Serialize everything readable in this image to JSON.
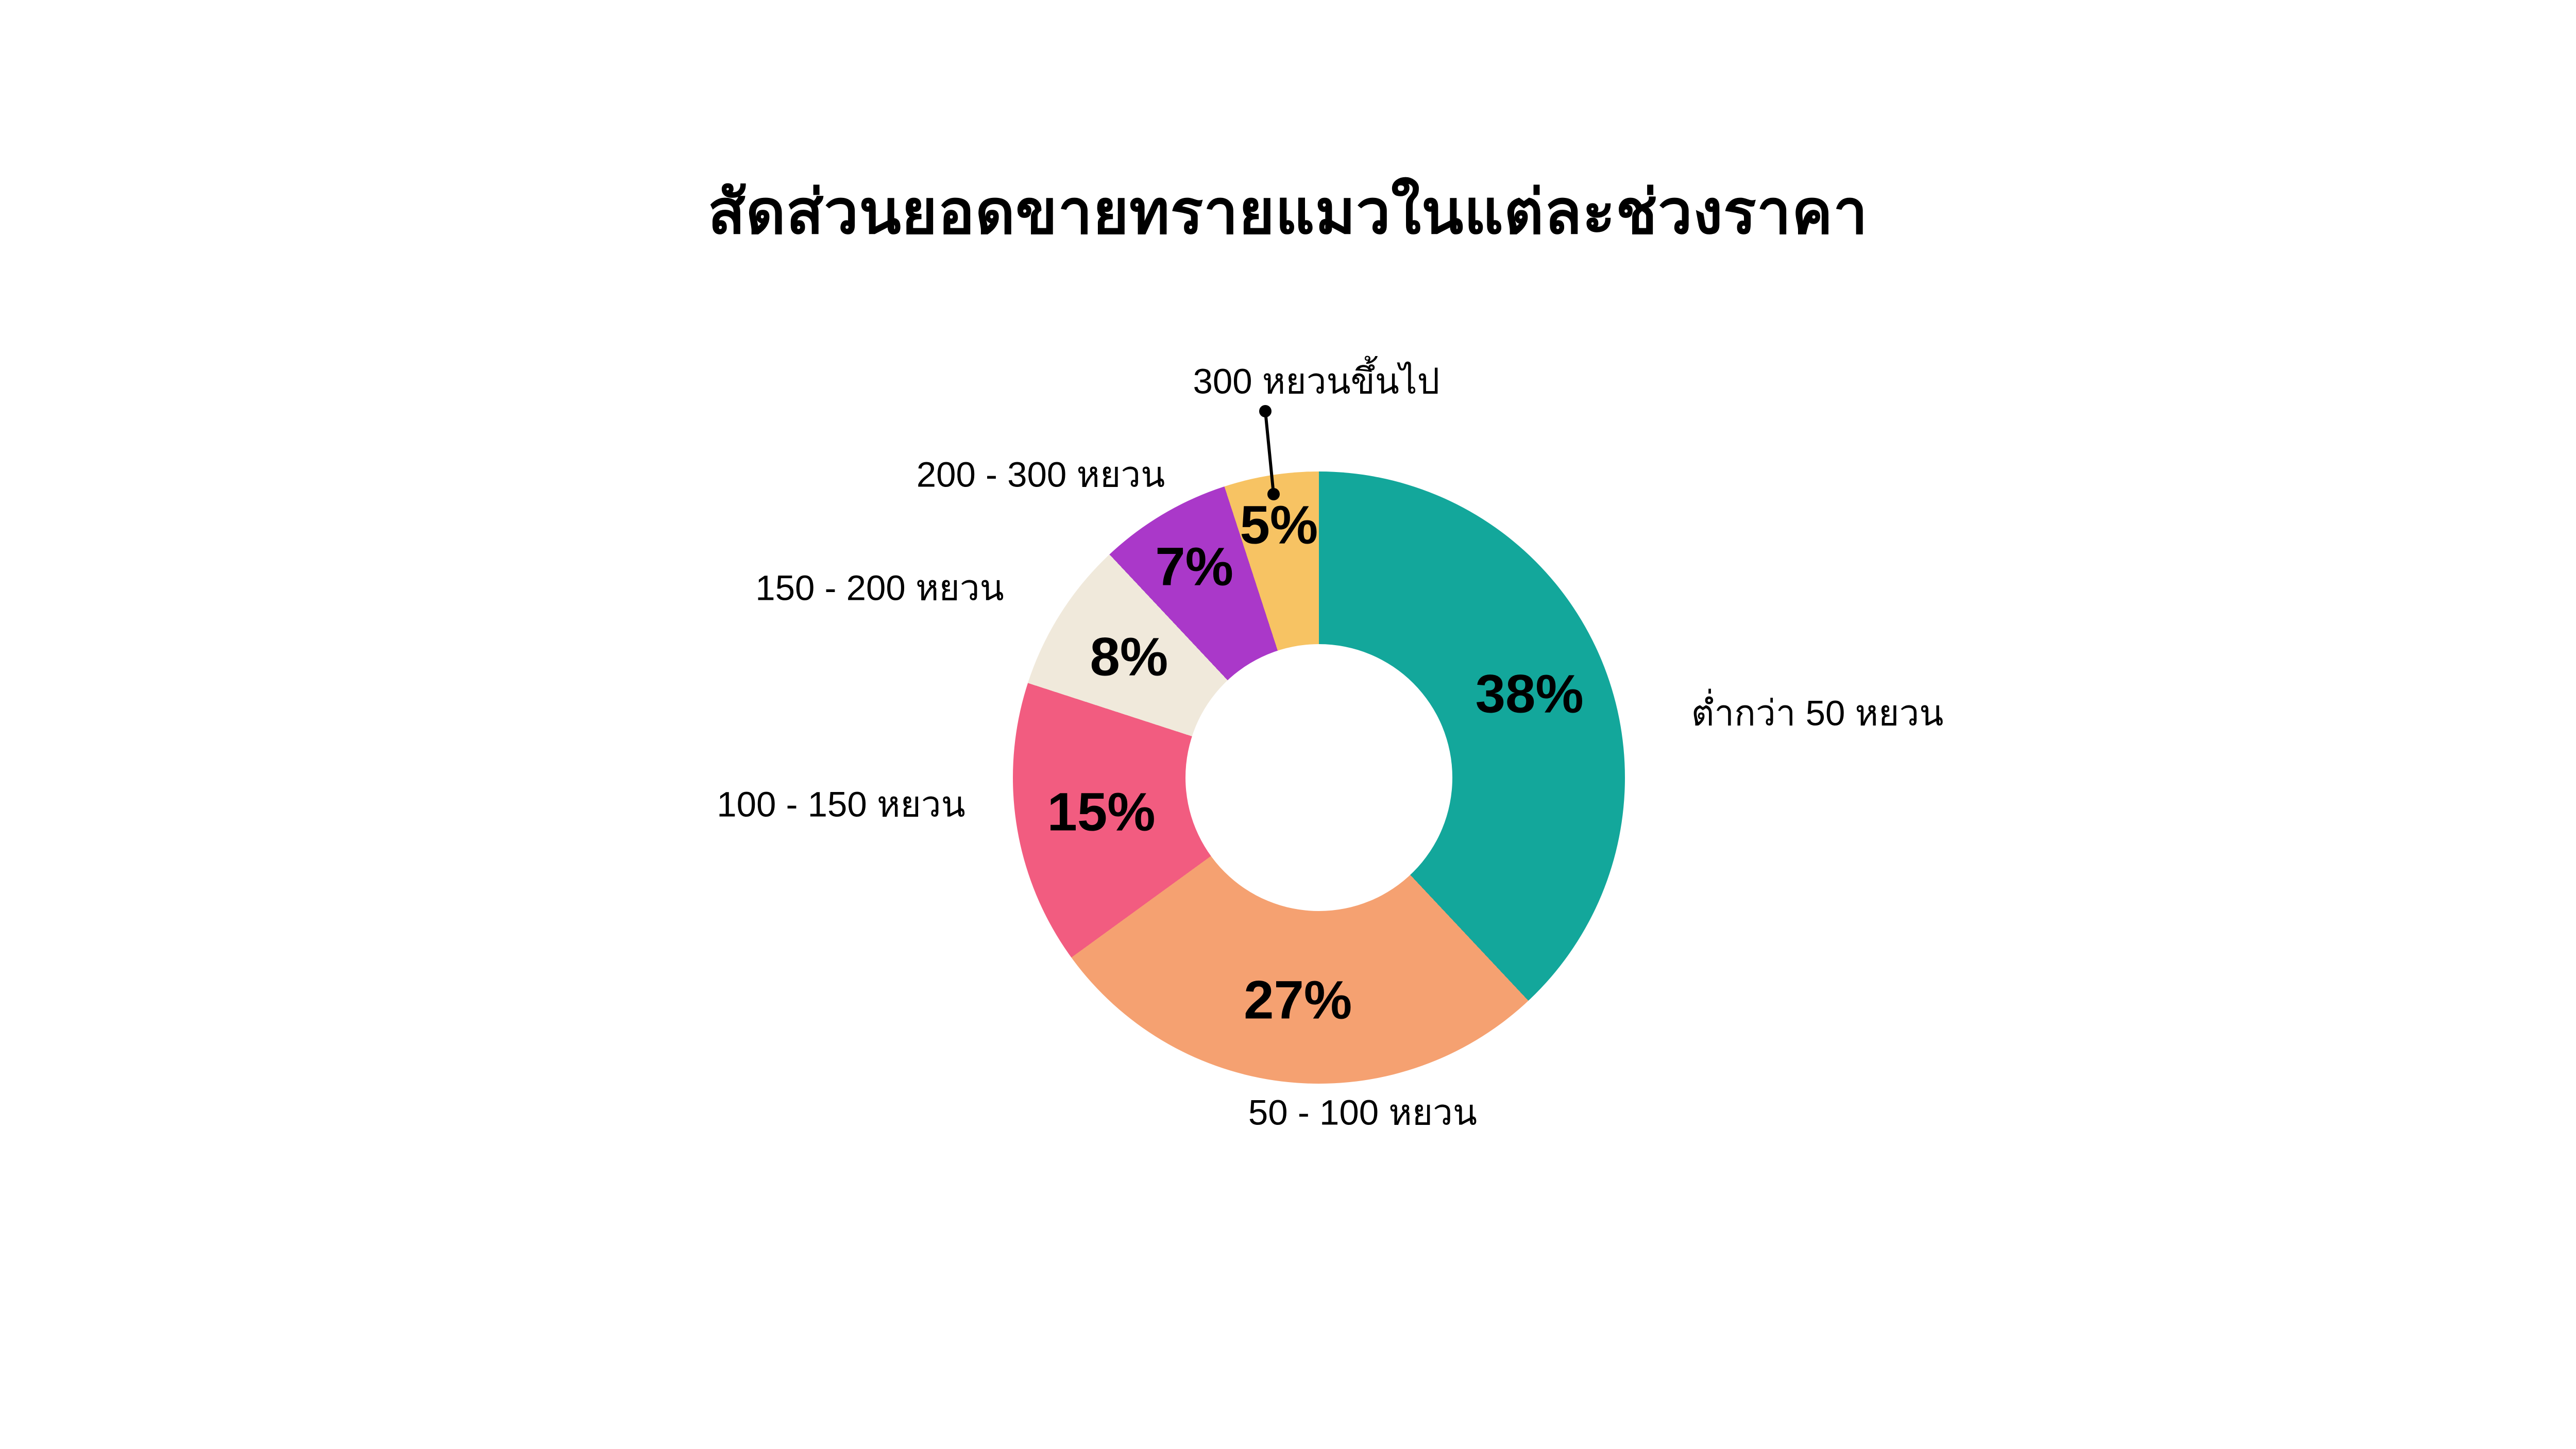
{
  "title": "สัดส่วนยอดขายทรายแมวในแต่ละช่วงราคา",
  "background_color": "#FFFFFF",
  "text_color": "#000000",
  "chart_data": {
    "type": "pie",
    "subtype": "donut",
    "title": "สัดส่วนยอดขายทรายแมวในแต่ละช่วงราคา",
    "unit": "%",
    "categories": [
      "ต่ำกว่า 50 หยวน",
      "50 - 100 หยวน",
      "100 - 150 หยวน",
      "150 - 200 หยวน",
      "200 - 300 หยวน",
      "300 หยวนขึ้นไป"
    ],
    "values": [
      38,
      27,
      15,
      8,
      7,
      5
    ],
    "value_labels": [
      "38%",
      "27%",
      "15%",
      "8%",
      "7%",
      "5%"
    ],
    "colors": [
      "#13A79B",
      "#F5A171",
      "#F25C80",
      "#F0E9DB",
      "#AA38C9",
      "#F7C363"
    ],
    "start_angle_deg": 0,
    "direction": "clockwise",
    "inner_radius_ratio": 0.44,
    "legend_position": "none",
    "label_style": "direct-labels-outside",
    "annotation": {
      "leader_line_for": "300 หยวนขึ้นไป",
      "leader_line_color": "#000000"
    }
  }
}
